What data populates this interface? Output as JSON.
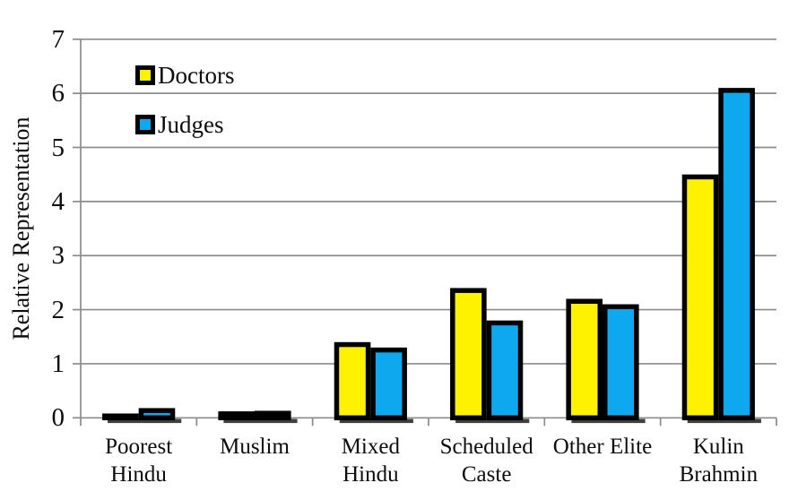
{
  "chart_data": {
    "type": "bar",
    "title": "",
    "xlabel": "",
    "ylabel": "Relative Representation",
    "categories": [
      [
        "Poorest",
        "Hindu"
      ],
      [
        "Muslim"
      ],
      [
        "Mixed",
        "Hindu"
      ],
      [
        "Scheduled",
        "Caste"
      ],
      [
        "Other Elite"
      ],
      [
        "Kulin",
        "Brahmin"
      ]
    ],
    "series": [
      {
        "name": "Doctors",
        "color": "#FFF200",
        "values": [
          0.08,
          0.12,
          1.4,
          2.4,
          2.2,
          4.5
        ]
      },
      {
        "name": "Judges",
        "color": "#0DA8EE",
        "values": [
          0.18,
          0.13,
          1.3,
          1.8,
          2.1,
          6.1
        ]
      }
    ],
    "y_ticks": [
      0,
      1,
      2,
      3,
      4,
      5,
      6,
      7
    ],
    "ylim": [
      0,
      7
    ],
    "grid": true,
    "legend_position": "top-left-inside",
    "colors": {
      "grid": "#8C8C8C",
      "axis": "#8C8C8C",
      "bar_border": "#000000",
      "shadow": "#404040",
      "text": "#0d0d0d",
      "background": "#FFFFFF"
    }
  }
}
